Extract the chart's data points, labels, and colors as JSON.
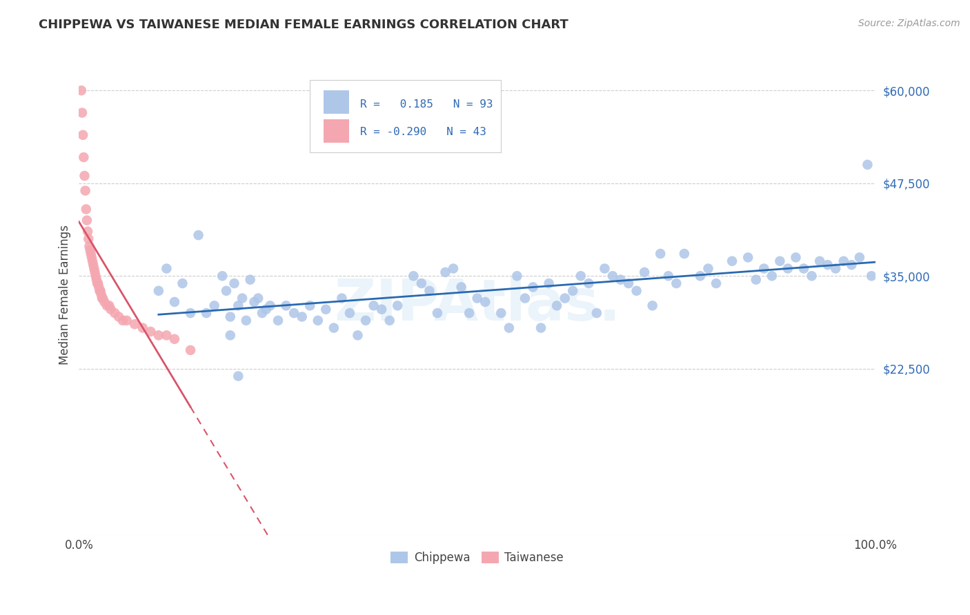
{
  "title": "CHIPPEWA VS TAIWANESE MEDIAN FEMALE EARNINGS CORRELATION CHART",
  "source_text": "Source: ZipAtlas.com",
  "ylabel": "Median Female Earnings",
  "xlim": [
    0,
    100
  ],
  "ylim": [
    0,
    65000
  ],
  "yticks": [
    0,
    22500,
    35000,
    47500,
    60000
  ],
  "ytick_labels": [
    "",
    "$22,500",
    "$35,000",
    "$47,500",
    "$60,000"
  ],
  "xtick_labels": [
    "0.0%",
    "100.0%"
  ],
  "blue_color": "#aec6e8",
  "pink_color": "#f4a7b0",
  "blue_line_color": "#2869b0",
  "pink_line_color": "#d9546a",
  "grid_color": "#cccccc",
  "blue_scatter_x": [
    10.0,
    11.0,
    12.0,
    13.0,
    14.0,
    15.0,
    16.0,
    17.0,
    18.0,
    18.5,
    19.0,
    19.5,
    20.0,
    20.5,
    21.0,
    21.5,
    22.0,
    22.5,
    23.0,
    23.5,
    24.0,
    25.0,
    26.0,
    27.0,
    28.0,
    29.0,
    30.0,
    31.0,
    32.0,
    33.0,
    34.0,
    35.0,
    36.0,
    37.0,
    38.0,
    39.0,
    40.0,
    42.0,
    43.0,
    44.0,
    45.0,
    46.0,
    47.0,
    48.0,
    49.0,
    50.0,
    51.0,
    53.0,
    54.0,
    55.0,
    56.0,
    57.0,
    58.0,
    59.0,
    60.0,
    61.0,
    62.0,
    63.0,
    64.0,
    65.0,
    66.0,
    67.0,
    68.0,
    69.0,
    70.0,
    71.0,
    72.0,
    73.0,
    74.0,
    75.0,
    76.0,
    78.0,
    79.0,
    80.0,
    82.0,
    84.0,
    85.0,
    86.0,
    87.0,
    88.0,
    89.0,
    90.0,
    91.0,
    92.0,
    93.0,
    94.0,
    95.0,
    96.0,
    97.0,
    98.0,
    99.0,
    99.5,
    19.0,
    20.0
  ],
  "blue_scatter_y": [
    33000,
    36000,
    31500,
    34000,
    30000,
    40500,
    30000,
    31000,
    35000,
    33000,
    29500,
    34000,
    31000,
    32000,
    29000,
    34500,
    31500,
    32000,
    30000,
    30500,
    31000,
    29000,
    31000,
    30000,
    29500,
    31000,
    29000,
    30500,
    28000,
    32000,
    30000,
    27000,
    29000,
    31000,
    30500,
    29000,
    31000,
    35000,
    34000,
    33000,
    30000,
    35500,
    36000,
    33500,
    30000,
    32000,
    31500,
    30000,
    28000,
    35000,
    32000,
    33500,
    28000,
    34000,
    31000,
    32000,
    33000,
    35000,
    34000,
    30000,
    36000,
    35000,
    34500,
    34000,
    33000,
    35500,
    31000,
    38000,
    35000,
    34000,
    38000,
    35000,
    36000,
    34000,
    37000,
    37500,
    34500,
    36000,
    35000,
    37000,
    36000,
    37500,
    36000,
    35000,
    37000,
    36500,
    36000,
    37000,
    36500,
    37500,
    50000,
    35000,
    27000,
    21500
  ],
  "pink_scatter_x": [
    0.3,
    0.4,
    0.5,
    0.6,
    0.7,
    0.8,
    0.9,
    1.0,
    1.1,
    1.2,
    1.3,
    1.4,
    1.5,
    1.6,
    1.7,
    1.8,
    1.9,
    2.0,
    2.1,
    2.2,
    2.3,
    2.4,
    2.5,
    2.6,
    2.7,
    2.8,
    2.9,
    3.0,
    3.2,
    3.5,
    3.8,
    4.0,
    4.5,
    5.0,
    5.5,
    6.0,
    7.0,
    8.0,
    9.0,
    10.0,
    11.0,
    12.0,
    14.0
  ],
  "pink_scatter_y": [
    60000,
    57000,
    54000,
    51000,
    48500,
    46500,
    44000,
    42500,
    41000,
    40000,
    39000,
    38500,
    38000,
    37500,
    37000,
    36500,
    36000,
    35500,
    35000,
    34500,
    34000,
    34000,
    33500,
    33000,
    33000,
    32500,
    32000,
    32000,
    31500,
    31000,
    31000,
    30500,
    30000,
    29500,
    29000,
    29000,
    28500,
    28000,
    27500,
    27000,
    27000,
    26500,
    25000
  ]
}
